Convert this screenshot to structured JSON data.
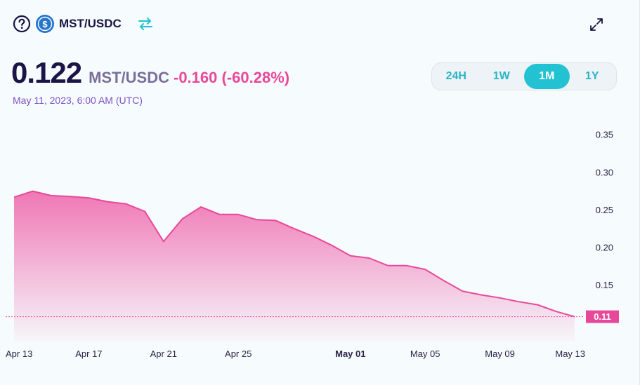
{
  "header": {
    "pair": "MST/USDC",
    "icons": [
      "help-circle-icon",
      "usdc-coin-icon",
      "swap-arrows-icon",
      "expand-icon"
    ]
  },
  "price": {
    "value": "0.122",
    "pair": "MST/USDC",
    "change": "-0.160 (-60.28%)",
    "date": "May 11, 2023, 6:00 AM (UTC)"
  },
  "ranges": [
    {
      "label": "24H",
      "active": false
    },
    {
      "label": "1W",
      "active": false
    },
    {
      "label": "1M",
      "active": true
    },
    {
      "label": "1Y",
      "active": false
    }
  ],
  "colors": {
    "line": "#e8489a",
    "accent": "#22c2d3",
    "title": "#1b1447"
  },
  "chart_data": {
    "type": "area",
    "x": [
      "Apr 13",
      "Apr 14",
      "Apr 15",
      "Apr 16",
      "Apr 17",
      "Apr 18",
      "Apr 19",
      "Apr 20",
      "Apr 21",
      "Apr 22",
      "Apr 23",
      "Apr 24",
      "Apr 25",
      "Apr 26",
      "Apr 27",
      "Apr 28",
      "Apr 29",
      "Apr 30",
      "May 01",
      "May 02",
      "May 03",
      "May 04",
      "May 05",
      "May 06",
      "May 07",
      "May 08",
      "May 09",
      "May 10",
      "May 11",
      "May 12",
      "May 13"
    ],
    "series": [
      {
        "values": [
          0.267,
          0.275,
          0.269,
          0.268,
          0.266,
          0.261,
          0.258,
          0.248,
          0.208,
          0.238,
          0.254,
          0.244,
          0.244,
          0.237,
          0.236,
          0.225,
          0.215,
          0.203,
          0.189,
          0.186,
          0.176,
          0.176,
          0.171,
          0.156,
          0.142,
          0.137,
          0.133,
          0.128,
          0.124,
          0.115,
          0.108
        ]
      }
    ],
    "x_ticks": [
      "Apr 13",
      "Apr 17",
      "Apr 21",
      "Apr 25",
      "May 01",
      "May 05",
      "May 09",
      "May 13"
    ],
    "bold_tick": "May 01",
    "y_ticks": [
      "0.35",
      "0.30",
      "0.25",
      "0.20",
      "0.15"
    ],
    "ylim": [
      0.075,
      0.38
    ],
    "current_value": 0.108,
    "current_label": "0.11",
    "grid": false
  }
}
